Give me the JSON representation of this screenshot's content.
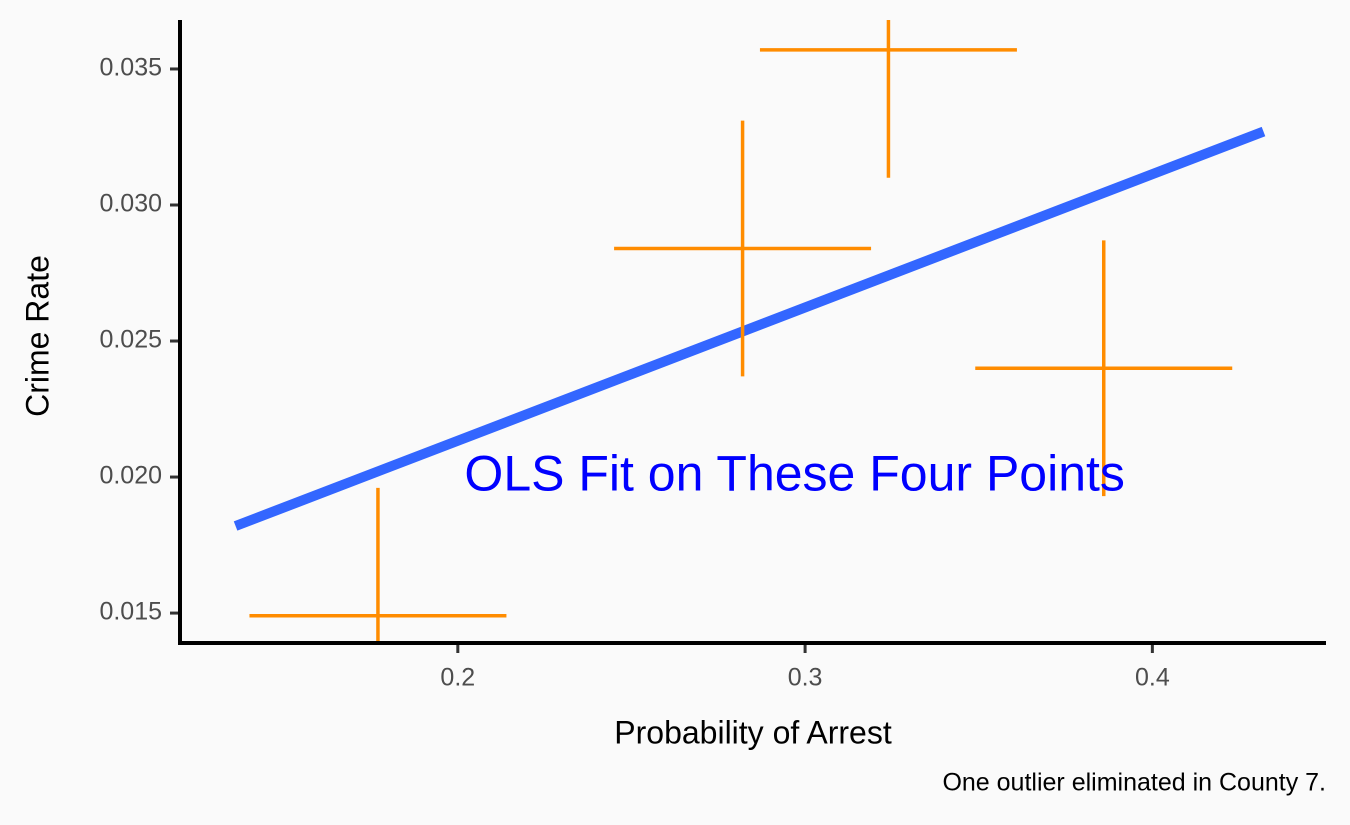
{
  "chart_data": {
    "type": "scatter",
    "xlabel": "Probability of Arrest",
    "ylabel": "Crime Rate",
    "caption": "One outlier eliminated in County 7.",
    "annotation": {
      "text": "OLS Fit on These Four Points",
      "x": 0.297,
      "y": 0.02,
      "color": "#0000FF"
    },
    "xlim": [
      0.12,
      0.45
    ],
    "ylim": [
      0.0139,
      0.0368
    ],
    "x_ticks": [
      0.2,
      0.3,
      0.4
    ],
    "x_tick_labels": [
      "0.2",
      "0.3",
      "0.4"
    ],
    "y_ticks": [
      0.015,
      0.02,
      0.025,
      0.03,
      0.035
    ],
    "y_tick_labels": [
      "0.015",
      "0.020",
      "0.025",
      "0.030",
      "0.035"
    ],
    "grid": false,
    "series": [
      {
        "marker": "cross",
        "color": "#FF8C00",
        "points": [
          {
            "x": 0.177,
            "y": 0.0149
          },
          {
            "x": 0.282,
            "y": 0.0284
          },
          {
            "x": 0.324,
            "y": 0.0357
          },
          {
            "x": 0.386,
            "y": 0.024
          }
        ],
        "cross_half_width_x": 0.037,
        "cross_half_height_y": 0.0047
      }
    ],
    "fit_line": {
      "color": "#3366FF",
      "x": [
        0.136,
        0.432
      ],
      "y": [
        0.0182,
        0.0327
      ]
    }
  }
}
